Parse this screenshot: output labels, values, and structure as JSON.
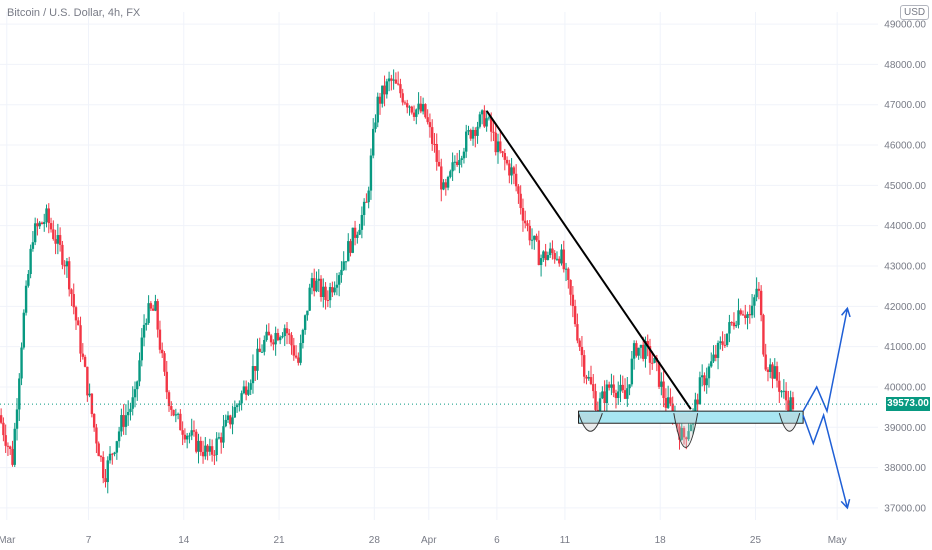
{
  "header": {
    "title": "Bitcoin / U.S. Dollar, 4h, FX",
    "currency": "USD",
    "last_price_label": "39573.00"
  },
  "colors": {
    "up": "#089981",
    "down": "#f23645",
    "trendline": "#000000",
    "zone_fill": "#a8e6f2",
    "zone_border": "#1e1e1e",
    "projection": "#1f5fd6",
    "grid": "#f0f3fa",
    "axis_text": "#787b86"
  },
  "chart_data": {
    "type": "candlestick",
    "title": "Bitcoin / U.S. Dollar, 4h, FX",
    "y_axis": {
      "ticks": [
        "49000.00",
        "48000.00",
        "47000.00",
        "46000.00",
        "45000.00",
        "44000.00",
        "43000.00",
        "42000.00",
        "41000.00",
        "40000.00",
        "39000.00",
        "38000.00",
        "37000.00"
      ],
      "range": [
        36700,
        49300
      ],
      "side": "right"
    },
    "x_axis": {
      "ticks": [
        "Mar",
        "7",
        "14",
        "21",
        "28",
        "Apr",
        "6",
        "11",
        "18",
        "25",
        "May"
      ],
      "tick_dates": [
        "2021-03-01",
        "2021-03-07",
        "2021-03-14",
        "2021-03-21",
        "2021-03-28",
        "2021-04-01",
        "2021-04-06",
        "2021-04-11",
        "2021-04-18",
        "2021-04-25",
        "2021-05-01"
      ],
      "range": [
        "2021-02-28T12:00",
        "2021-05-04T00:00"
      ]
    },
    "price_path": {
      "description_points": [
        [
          "2021-02-28T12:00",
          39300
        ],
        [
          "2021-03-01T12:00",
          38200
        ],
        [
          "2021-03-02T06:00",
          41500
        ],
        [
          "2021-03-03T00:00",
          43800
        ],
        [
          "2021-03-04T00:00",
          44200
        ],
        [
          "2021-03-05T12:00",
          43000
        ],
        [
          "2021-03-06T12:00",
          41000
        ],
        [
          "2021-03-07T12:00",
          39000
        ],
        [
          "2021-03-08T06:00",
          37800
        ],
        [
          "2021-03-09T12:00",
          39100
        ],
        [
          "2021-03-10T12:00",
          39700
        ],
        [
          "2021-03-11T06:00",
          41800
        ],
        [
          "2021-03-12T00:00",
          41900
        ],
        [
          "2021-03-12T18:00",
          40000
        ],
        [
          "2021-03-13T12:00",
          39200
        ],
        [
          "2021-03-15T00:00",
          38600
        ],
        [
          "2021-03-16T00:00",
          38300
        ],
        [
          "2021-03-17T12:00",
          39200
        ],
        [
          "2021-03-19T00:00",
          40300
        ],
        [
          "2021-03-20T00:00",
          41100
        ],
        [
          "2021-03-21T12:00",
          41500
        ],
        [
          "2021-03-22T12:00",
          40600
        ],
        [
          "2021-03-23T12:00",
          42700
        ],
        [
          "2021-03-24T12:00",
          42200
        ],
        [
          "2021-03-25T12:00",
          42900
        ],
        [
          "2021-03-26T12:00",
          43700
        ],
        [
          "2021-03-27T12:00",
          44500
        ],
        [
          "2021-03-28T06:00",
          47000
        ],
        [
          "2021-03-29T06:00",
          47600
        ],
        [
          "2021-03-30T00:00",
          47300
        ],
        [
          "2021-03-31T00:00",
          46900
        ],
        [
          "2021-03-31T18:00",
          46800
        ],
        [
          "2021-04-01T12:00",
          45900
        ],
        [
          "2021-04-02T06:00",
          44700
        ],
        [
          "2021-04-03T00:00",
          45600
        ],
        [
          "2021-04-04T06:00",
          46400
        ],
        [
          "2021-04-05T06:00",
          46700
        ],
        [
          "2021-04-06T06:00",
          45800
        ],
        [
          "2021-04-07T06:00",
          45300
        ],
        [
          "2021-04-08T06:00",
          44000
        ],
        [
          "2021-04-09T06:00",
          43200
        ],
        [
          "2021-04-10T00:00",
          43300
        ],
        [
          "2021-04-10T18:00",
          43300
        ],
        [
          "2021-04-11T12:00",
          42200
        ],
        [
          "2021-04-12T12:00",
          40500
        ],
        [
          "2021-04-13T12:00",
          39500
        ],
        [
          "2021-04-14T12:00",
          40100
        ],
        [
          "2021-04-15T12:00",
          39700
        ],
        [
          "2021-04-16T06:00",
          41000
        ],
        [
          "2021-04-17T00:00",
          40900
        ],
        [
          "2021-04-17T18:00",
          40500
        ],
        [
          "2021-04-18T12:00",
          39600
        ],
        [
          "2021-04-19T00:00",
          39400
        ],
        [
          "2021-04-19T18:00",
          38700
        ],
        [
          "2021-04-20T12:00",
          39300
        ],
        [
          "2021-04-21T00:00",
          40000
        ],
        [
          "2021-04-21T18:00",
          40500
        ],
        [
          "2021-04-22T12:00",
          41000
        ],
        [
          "2021-04-23T06:00",
          41500
        ],
        [
          "2021-04-24T00:00",
          42000
        ],
        [
          "2021-04-24T18:00",
          41700
        ],
        [
          "2021-04-25T06:00",
          42600
        ],
        [
          "2021-04-25T18:00",
          40700
        ],
        [
          "2021-04-26T12:00",
          40300
        ],
        [
          "2021-04-27T06:00",
          39700
        ],
        [
          "2021-04-27T18:00",
          39573
        ]
      ]
    },
    "annotations": {
      "trendline": [
        [
          "2021-04-05T06:00",
          46850
        ],
        [
          "2021-04-20T06:00",
          39450
        ]
      ],
      "support_zone": {
        "from": "2021-04-12T00:00",
        "to": "2021-04-28T12:00",
        "y_low": 39100,
        "y_high": 39400
      },
      "arcs": [
        {
          "from": "2021-04-12T00:00",
          "to": "2021-04-13T18:00",
          "y_top": 39350,
          "y_bottom": 38900
        },
        {
          "from": "2021-04-19T00:00",
          "to": "2021-04-20T18:00",
          "y_top": 39350,
          "y_bottom": 38500
        },
        {
          "from": "2021-04-26T18:00",
          "to": "2021-04-28T06:00",
          "y_top": 39350,
          "y_bottom": 38900
        }
      ],
      "projection_up": [
        [
          "2021-04-28T12:00",
          39400
        ],
        [
          "2021-04-29T12:00",
          40000
        ],
        [
          "2021-04-30T06:00",
          39400
        ],
        [
          "2021-05-01T18:00",
          41950
        ]
      ],
      "projection_down": [
        [
          "2021-04-28T12:00",
          39300
        ],
        [
          "2021-04-29T06:00",
          38600
        ],
        [
          "2021-04-30T00:00",
          39300
        ],
        [
          "2021-05-01T18:00",
          37000
        ]
      ],
      "last_price": 39573
    }
  }
}
